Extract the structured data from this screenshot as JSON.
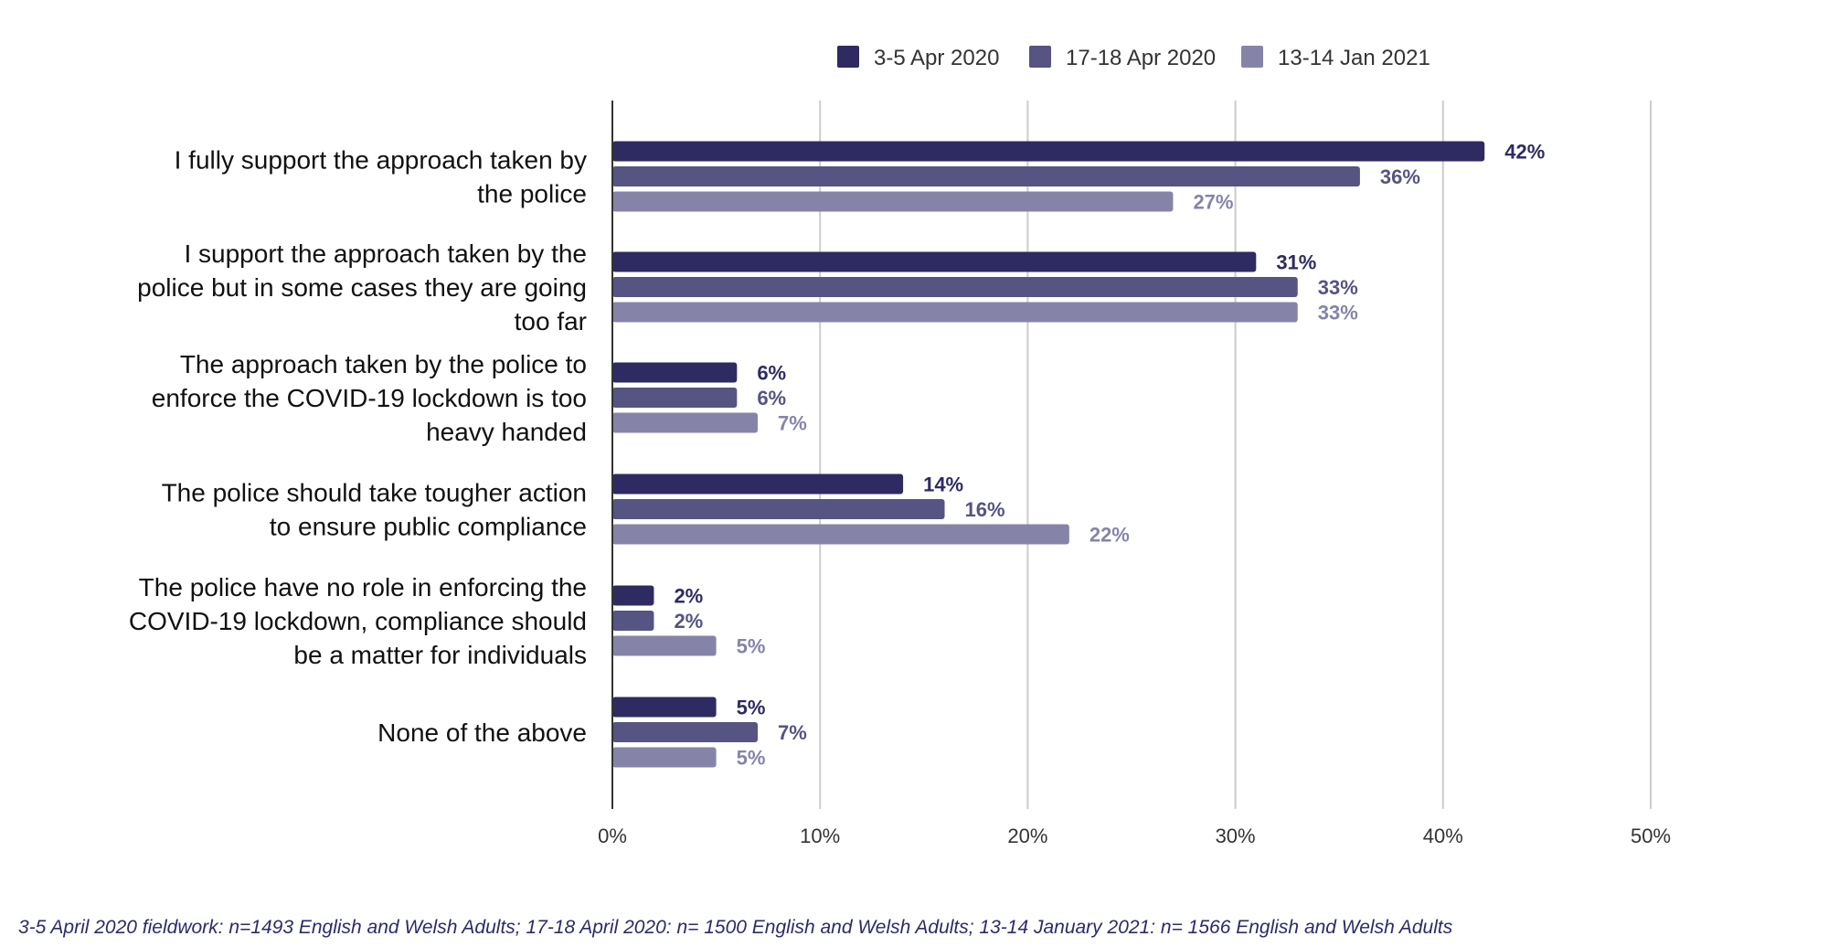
{
  "chart_data": {
    "type": "bar",
    "orientation": "horizontal",
    "categories": [
      [
        "I fully support the approach taken by",
        "the police"
      ],
      [
        "I support the approach taken by the",
        "police but in some cases they are going",
        "too far"
      ],
      [
        "The approach taken by the police to",
        "enforce the COVID-19 lockdown is too",
        "heavy handed"
      ],
      [
        "The police should take tougher action",
        "to ensure public compliance"
      ],
      [
        "The police have no role in enforcing the",
        "COVID-19 lockdown, compliance should",
        "be a matter for individuals"
      ],
      [
        "None of the above"
      ]
    ],
    "series": [
      {
        "name": "3-5 Apr 2020",
        "color": "#2e2b62",
        "values": [
          42,
          31,
          6,
          14,
          2,
          5
        ]
      },
      {
        "name": "17-18 Apr 2020",
        "color": "#555482",
        "values": [
          36,
          33,
          6,
          16,
          2,
          7
        ]
      },
      {
        "name": "13-14 Jan 2021",
        "color": "#8584a8",
        "values": [
          27,
          33,
          7,
          22,
          5,
          5
        ]
      }
    ],
    "value_suffix": "%",
    "xlim": [
      0,
      50
    ],
    "xticks": [
      0,
      10,
      20,
      30,
      40,
      50
    ],
    "xtick_labels": [
      "0%",
      "10%",
      "20%",
      "30%",
      "40%",
      "50%"
    ],
    "grid": true,
    "legend_position": "top-center",
    "data_labels": true
  },
  "footnote": "3-5 April 2020 fieldwork: n=1493 English and Welsh Adults; 17-18 April 2020: n= 1500 English and Welsh Adults; 13-14 January 2021: n= 1566 English and Welsh Adults"
}
